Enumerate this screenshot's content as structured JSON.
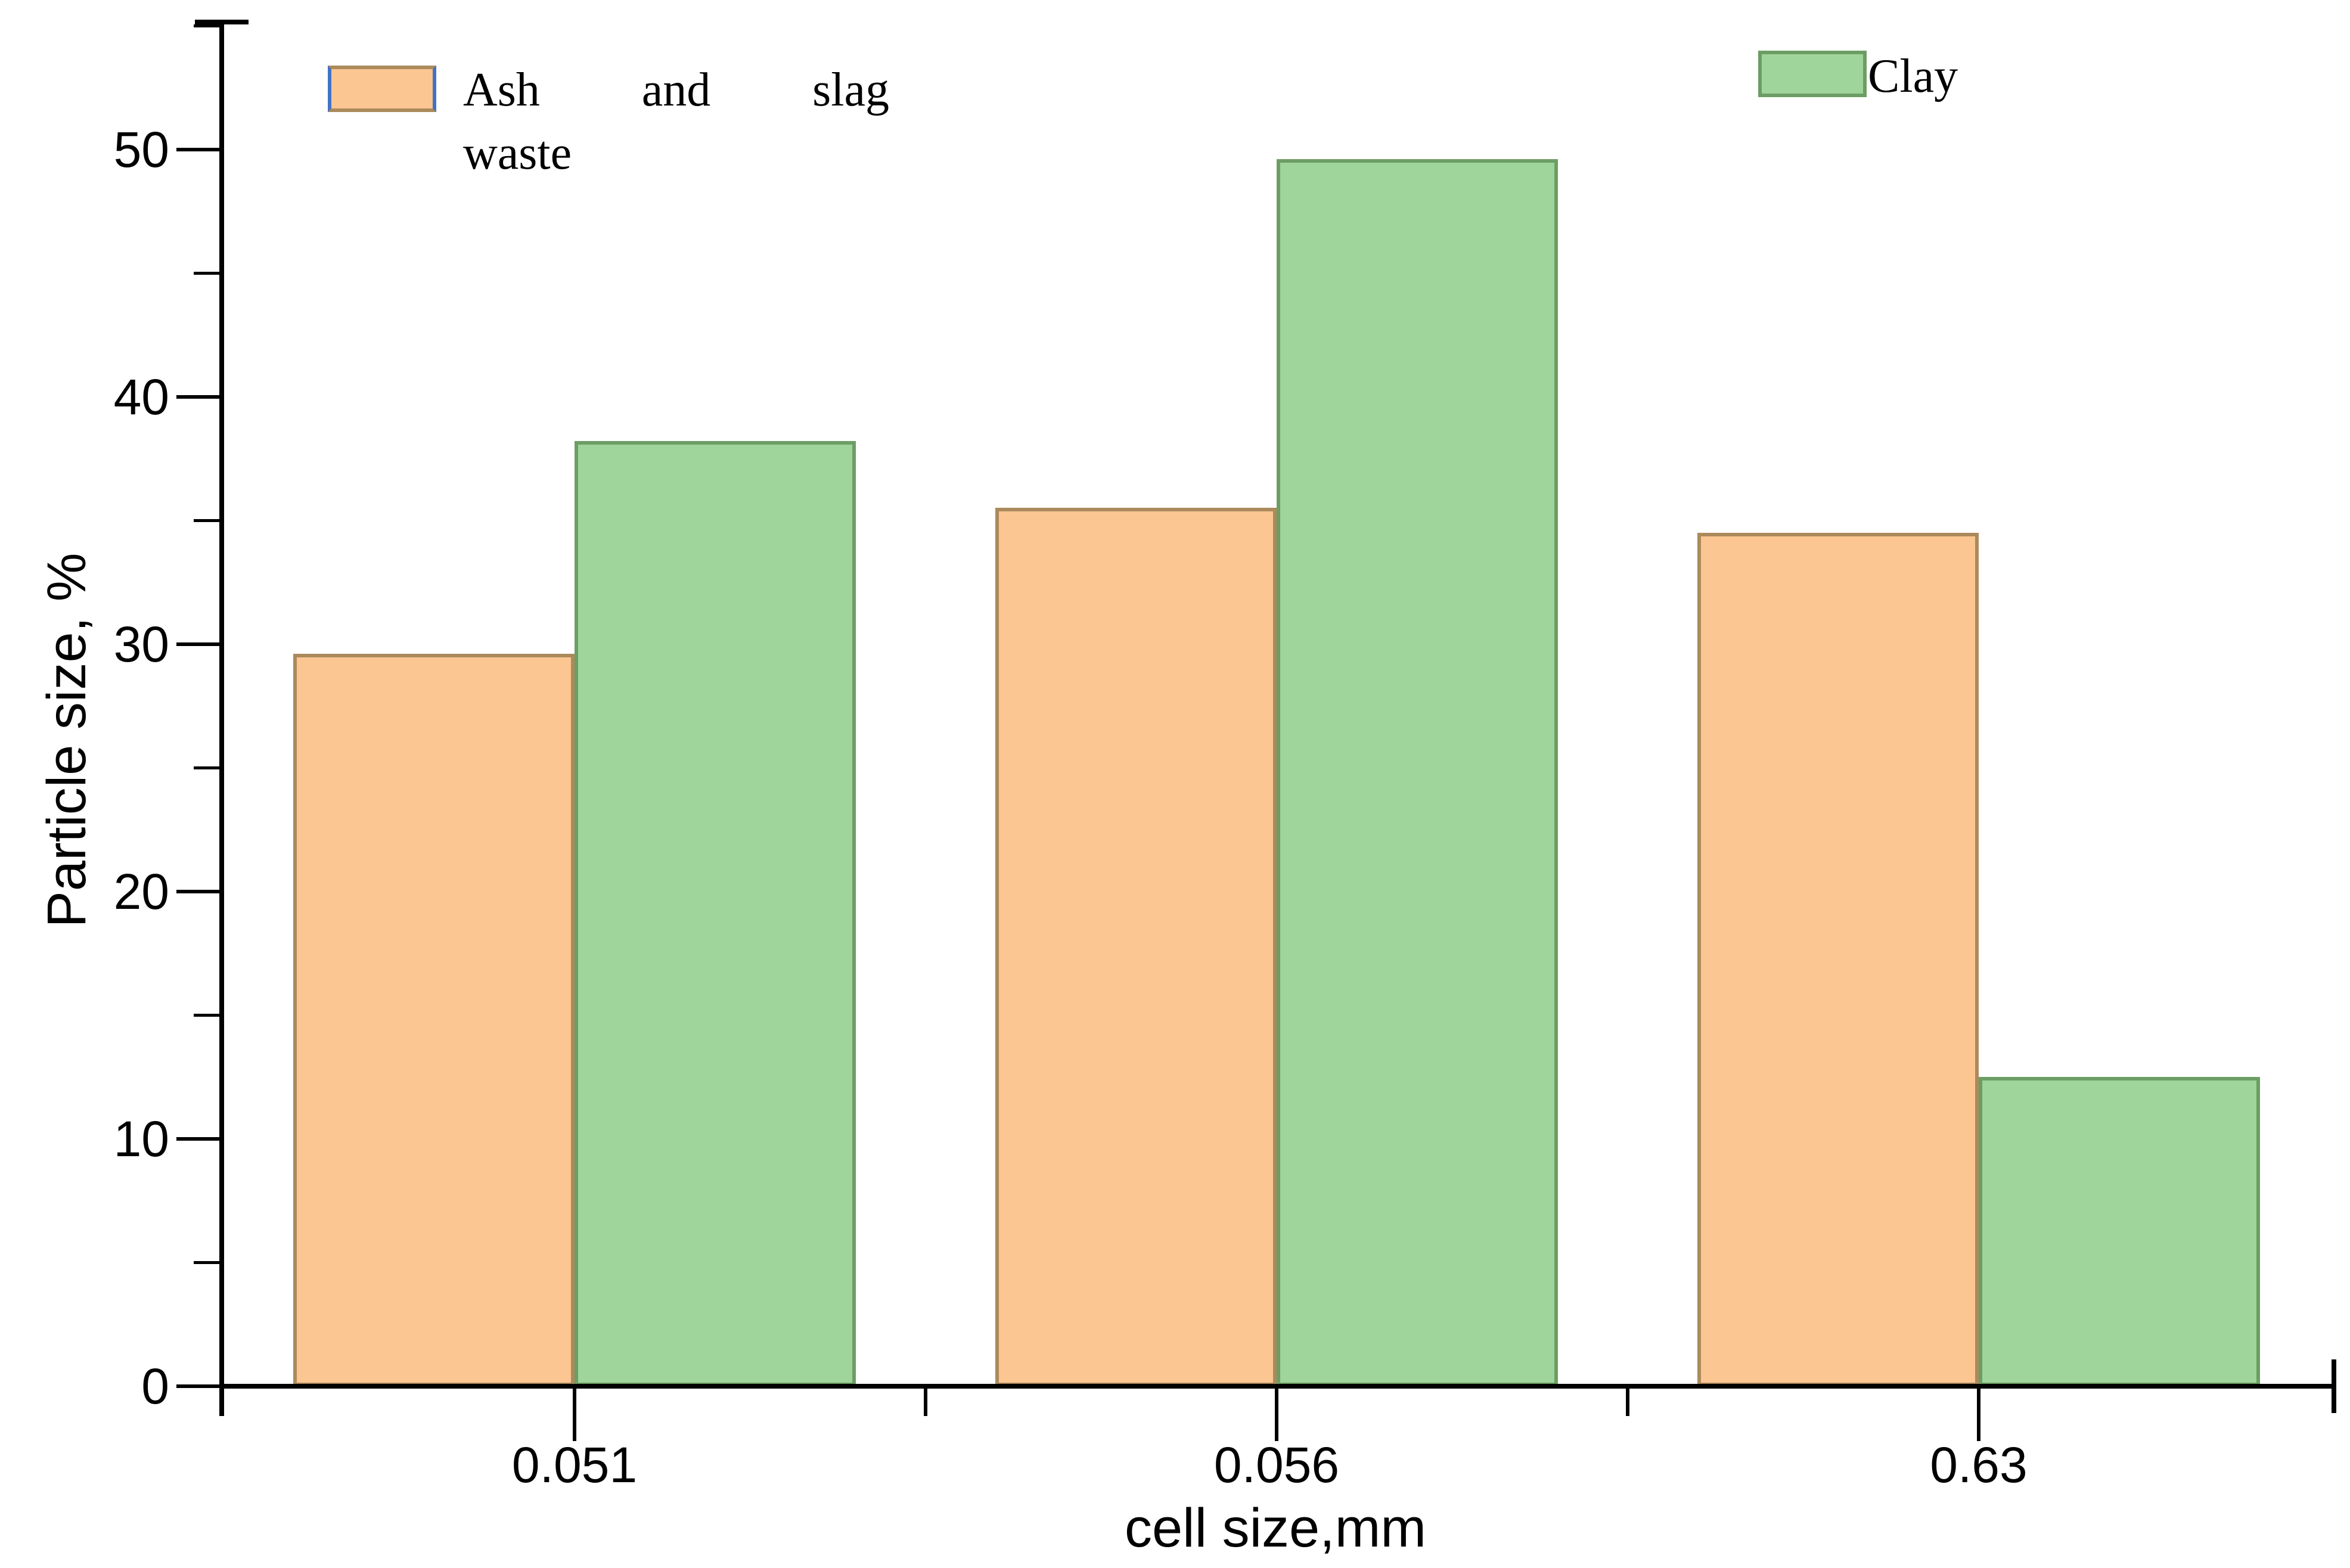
{
  "chart_data": {
    "type": "bar",
    "title": "",
    "categories": [
      "0.051",
      "0.056",
      "0.63"
    ],
    "series": [
      {
        "name": "Ash and slag waste",
        "values": [
          29.6,
          35.5,
          34.5
        ],
        "fill": "#FBC692",
        "stroke": "#AB8A5C"
      },
      {
        "name": "Clay",
        "values": [
          38.2,
          49.6,
          12.5
        ],
        "fill": "#9FD49B",
        "stroke": "#6C9E63"
      }
    ],
    "xlabel": "cell size,mm",
    "ylabel": "Particle size, %",
    "ylim": [
      0,
      55
    ],
    "yticks": [
      0,
      10,
      20,
      30,
      40,
      50
    ],
    "y_minor_tick_step": 5,
    "grid": false,
    "bar_mode": "grouped-touching",
    "legend_position": "top-inside"
  },
  "legend": {
    "ash": {
      "words": [
        "Ash",
        "and",
        "slag"
      ],
      "line2": "waste",
      "swatch_fill": "#FBC692",
      "swatch_edge_top_bottom": "#AB8A5C",
      "swatch_edge_sides": "#4472C4"
    },
    "clay": {
      "label": "Clay",
      "swatch_fill": "#9FD49B",
      "swatch_edge": "#6C9E63"
    }
  },
  "colors": {
    "axis": "#000000",
    "text": "#000000",
    "background": "#FFFFFF"
  }
}
